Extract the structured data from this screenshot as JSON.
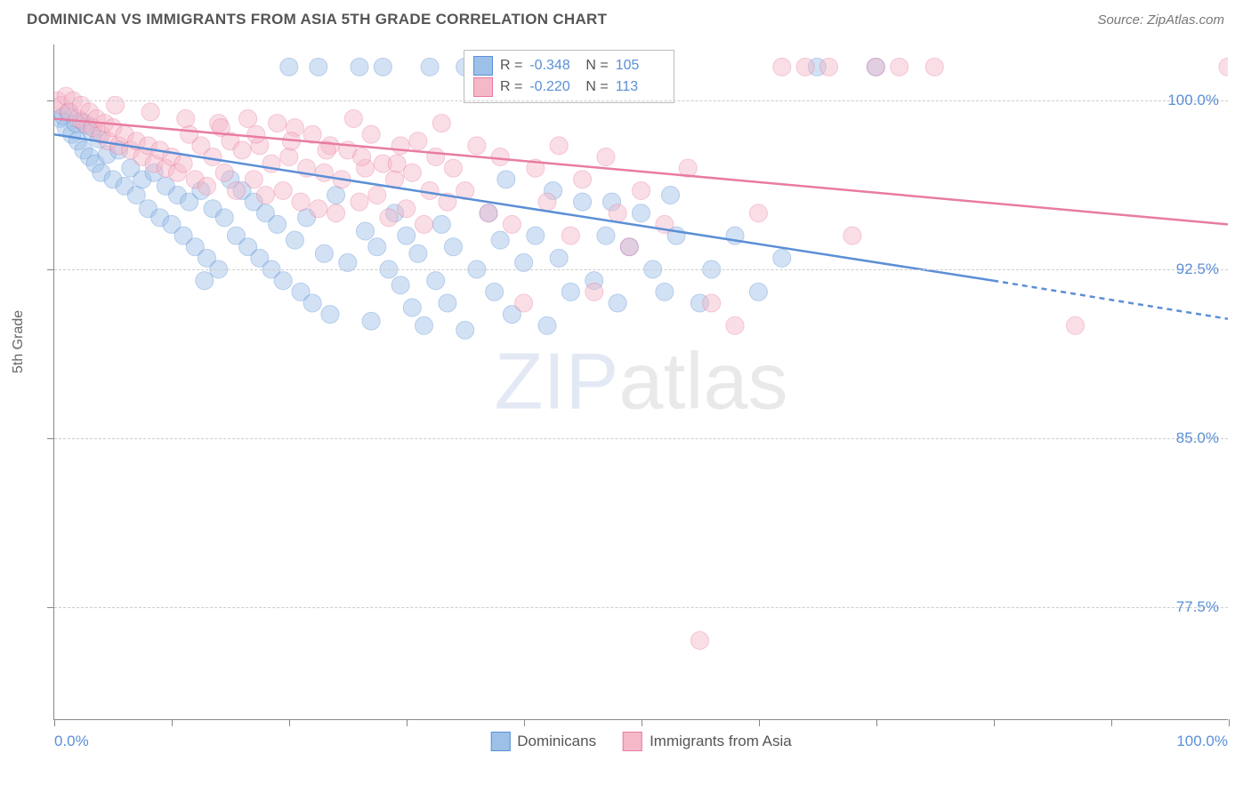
{
  "header": {
    "title": "DOMINICAN VS IMMIGRANTS FROM ASIA 5TH GRADE CORRELATION CHART",
    "source": "Source: ZipAtlas.com"
  },
  "chart": {
    "type": "scatter",
    "y_axis_label": "5th Grade",
    "watermark": "ZIPatlas",
    "background_color": "#ffffff",
    "grid_color": "#cccccc",
    "axis_color": "#888888",
    "xlim": [
      0,
      100
    ],
    "ylim": [
      72.5,
      102.5
    ],
    "y_ticks": [
      77.5,
      85.0,
      92.5,
      100.0
    ],
    "y_tick_labels": [
      "77.5%",
      "85.0%",
      "92.5%",
      "100.0%"
    ],
    "x_ticks": [
      0,
      10,
      20,
      30,
      40,
      50,
      60,
      70,
      80,
      90,
      100
    ],
    "x_label_start": "0.0%",
    "x_label_end": "100.0%",
    "marker_radius": 10,
    "marker_opacity": 0.45,
    "line_width": 2.5,
    "series": [
      {
        "name": "Dominicans",
        "color_fill": "#9cc0e8",
        "color_stroke": "#5b8fd6",
        "r_value": "-0.348",
        "n_value": "105",
        "trend": {
          "x1": 0,
          "y1": 98.5,
          "x2": 80,
          "y2": 92.0,
          "dash_x2": 100,
          "dash_y2": 90.3
        },
        "points": [
          [
            0.5,
            99.2
          ],
          [
            0.8,
            99.3
          ],
          [
            1.0,
            98.8
          ],
          [
            1.2,
            99.5
          ],
          [
            1.5,
            98.5
          ],
          [
            1.8,
            99.0
          ],
          [
            2.0,
            98.2
          ],
          [
            2.3,
            99.1
          ],
          [
            2.5,
            97.8
          ],
          [
            2.8,
            98.9
          ],
          [
            3.0,
            97.5
          ],
          [
            3.2,
            98.6
          ],
          [
            3.5,
            97.2
          ],
          [
            3.8,
            98.3
          ],
          [
            4.0,
            96.8
          ],
          [
            4.5,
            97.6
          ],
          [
            5.0,
            96.5
          ],
          [
            5.5,
            97.8
          ],
          [
            6.0,
            96.2
          ],
          [
            6.5,
            97.0
          ],
          [
            7.0,
            95.8
          ],
          [
            7.5,
            96.5
          ],
          [
            8.0,
            95.2
          ],
          [
            8.5,
            96.8
          ],
          [
            9.0,
            94.8
          ],
          [
            9.5,
            96.2
          ],
          [
            10.0,
            94.5
          ],
          [
            10.5,
            95.8
          ],
          [
            11.0,
            94.0
          ],
          [
            11.5,
            95.5
          ],
          [
            12.0,
            93.5
          ],
          [
            12.5,
            96.0
          ],
          [
            13.0,
            93.0
          ],
          [
            13.5,
            95.2
          ],
          [
            14.0,
            92.5
          ],
          [
            14.5,
            94.8
          ],
          [
            15.0,
            96.5
          ],
          [
            15.5,
            94.0
          ],
          [
            16.0,
            96.0
          ],
          [
            16.5,
            93.5
          ],
          [
            17.0,
            95.5
          ],
          [
            17.5,
            93.0
          ],
          [
            18.0,
            95.0
          ],
          [
            18.5,
            92.5
          ],
          [
            19.0,
            94.5
          ],
          [
            19.5,
            92.0
          ],
          [
            20.0,
            101.5
          ],
          [
            20.5,
            93.8
          ],
          [
            21.0,
            91.5
          ],
          [
            21.5,
            94.8
          ],
          [
            22.0,
            91.0
          ],
          [
            22.5,
            101.5
          ],
          [
            23.0,
            93.2
          ],
          [
            23.5,
            90.5
          ],
          [
            24.0,
            95.8
          ],
          [
            25.0,
            92.8
          ],
          [
            26.0,
            101.5
          ],
          [
            26.5,
            94.2
          ],
          [
            27.0,
            90.2
          ],
          [
            27.5,
            93.5
          ],
          [
            28.0,
            101.5
          ],
          [
            28.5,
            92.5
          ],
          [
            29.0,
            95.0
          ],
          [
            29.5,
            91.8
          ],
          [
            30.0,
            94.0
          ],
          [
            30.5,
            90.8
          ],
          [
            31.0,
            93.2
          ],
          [
            31.5,
            90.0
          ],
          [
            32.0,
            101.5
          ],
          [
            32.5,
            92.0
          ],
          [
            33.0,
            94.5
          ],
          [
            33.5,
            91.0
          ],
          [
            34.0,
            93.5
          ],
          [
            35.0,
            89.8
          ],
          [
            36.0,
            92.5
          ],
          [
            37.0,
            95.0
          ],
          [
            37.5,
            91.5
          ],
          [
            38.0,
            93.8
          ],
          [
            39.0,
            90.5
          ],
          [
            40.0,
            92.8
          ],
          [
            41.0,
            94.0
          ],
          [
            42.0,
            90.0
          ],
          [
            43.0,
            93.0
          ],
          [
            44.0,
            91.5
          ],
          [
            45.0,
            95.5
          ],
          [
            46.0,
            92.0
          ],
          [
            47.0,
            94.0
          ],
          [
            48.0,
            91.0
          ],
          [
            49.0,
            93.5
          ],
          [
            50.0,
            95.0
          ],
          [
            51.0,
            92.5
          ],
          [
            52.0,
            91.5
          ],
          [
            53.0,
            94.0
          ],
          [
            55.0,
            91.0
          ],
          [
            56.0,
            92.5
          ],
          [
            58.0,
            94.0
          ],
          [
            60.0,
            91.5
          ],
          [
            62.0,
            93.0
          ],
          [
            65.0,
            101.5
          ],
          [
            70.0,
            101.5
          ],
          [
            35.0,
            101.5
          ],
          [
            38.5,
            96.5
          ],
          [
            42.5,
            96.0
          ],
          [
            47.5,
            95.5
          ],
          [
            52.5,
            95.8
          ],
          [
            12.8,
            92.0
          ]
        ]
      },
      {
        "name": "Immigrants from Asia",
        "color_fill": "#f5b8c9",
        "color_stroke": "#e87ca0",
        "r_value": "-0.220",
        "n_value": "113",
        "trend": {
          "x1": 0,
          "y1": 99.2,
          "x2": 100,
          "y2": 94.5,
          "dash_x2": 100,
          "dash_y2": 94.5
        },
        "points": [
          [
            0.3,
            100.0
          ],
          [
            0.6,
            99.8
          ],
          [
            1.0,
            100.2
          ],
          [
            1.3,
            99.5
          ],
          [
            1.6,
            100.0
          ],
          [
            2.0,
            99.2
          ],
          [
            2.3,
            99.8
          ],
          [
            2.6,
            99.0
          ],
          [
            3.0,
            99.5
          ],
          [
            3.3,
            98.8
          ],
          [
            3.6,
            99.2
          ],
          [
            4.0,
            98.5
          ],
          [
            4.3,
            99.0
          ],
          [
            4.6,
            98.2
          ],
          [
            5.0,
            98.8
          ],
          [
            5.5,
            98.0
          ],
          [
            6.0,
            98.5
          ],
          [
            6.5,
            97.8
          ],
          [
            7.0,
            98.2
          ],
          [
            7.5,
            97.5
          ],
          [
            8.0,
            98.0
          ],
          [
            8.5,
            97.2
          ],
          [
            9.0,
            97.8
          ],
          [
            9.5,
            97.0
          ],
          [
            10.0,
            97.5
          ],
          [
            10.5,
            96.8
          ],
          [
            11.0,
            97.2
          ],
          [
            11.5,
            98.5
          ],
          [
            12.0,
            96.5
          ],
          [
            12.5,
            98.0
          ],
          [
            13.0,
            96.2
          ],
          [
            13.5,
            97.5
          ],
          [
            14.0,
            99.0
          ],
          [
            14.5,
            96.8
          ],
          [
            15.0,
            98.2
          ],
          [
            15.5,
            96.0
          ],
          [
            16.0,
            97.8
          ],
          [
            16.5,
            99.2
          ],
          [
            17.0,
            96.5
          ],
          [
            17.5,
            98.0
          ],
          [
            18.0,
            95.8
          ],
          [
            18.5,
            97.2
          ],
          [
            19.0,
            99.0
          ],
          [
            19.5,
            96.0
          ],
          [
            20.0,
            97.5
          ],
          [
            20.5,
            98.8
          ],
          [
            21.0,
            95.5
          ],
          [
            21.5,
            97.0
          ],
          [
            22.0,
            98.5
          ],
          [
            22.5,
            95.2
          ],
          [
            23.0,
            96.8
          ],
          [
            23.5,
            98.0
          ],
          [
            24.0,
            95.0
          ],
          [
            24.5,
            96.5
          ],
          [
            25.0,
            97.8
          ],
          [
            25.5,
            99.2
          ],
          [
            26.0,
            95.5
          ],
          [
            26.5,
            97.0
          ],
          [
            27.0,
            98.5
          ],
          [
            27.5,
            95.8
          ],
          [
            28.0,
            97.2
          ],
          [
            28.5,
            94.8
          ],
          [
            29.0,
            96.5
          ],
          [
            29.5,
            98.0
          ],
          [
            30.0,
            95.2
          ],
          [
            30.5,
            96.8
          ],
          [
            31.0,
            98.2
          ],
          [
            31.5,
            94.5
          ],
          [
            32.0,
            96.0
          ],
          [
            32.5,
            97.5
          ],
          [
            33.0,
            99.0
          ],
          [
            33.5,
            95.5
          ],
          [
            34.0,
            97.0
          ],
          [
            35.0,
            96.0
          ],
          [
            36.0,
            98.0
          ],
          [
            37.0,
            95.0
          ],
          [
            38.0,
            97.5
          ],
          [
            39.0,
            94.5
          ],
          [
            40.0,
            91.0
          ],
          [
            41.0,
            97.0
          ],
          [
            42.0,
            95.5
          ],
          [
            43.0,
            98.0
          ],
          [
            44.0,
            94.0
          ],
          [
            45.0,
            96.5
          ],
          [
            46.0,
            91.5
          ],
          [
            47.0,
            97.5
          ],
          [
            48.0,
            95.0
          ],
          [
            49.0,
            93.5
          ],
          [
            50.0,
            96.0
          ],
          [
            52.0,
            94.5
          ],
          [
            54.0,
            97.0
          ],
          [
            56.0,
            91.0
          ],
          [
            58.0,
            90.0
          ],
          [
            60.0,
            95.0
          ],
          [
            62.0,
            101.5
          ],
          [
            64.0,
            101.5
          ],
          [
            66.0,
            101.5
          ],
          [
            68.0,
            94.0
          ],
          [
            70.0,
            101.5
          ],
          [
            72.0,
            101.5
          ],
          [
            75.0,
            101.5
          ],
          [
            55.0,
            76.0
          ],
          [
            87.0,
            90.0
          ],
          [
            100.0,
            101.5
          ],
          [
            5.2,
            99.8
          ],
          [
            8.2,
            99.5
          ],
          [
            11.2,
            99.2
          ],
          [
            14.2,
            98.8
          ],
          [
            17.2,
            98.5
          ],
          [
            20.2,
            98.2
          ],
          [
            23.2,
            97.8
          ],
          [
            26.2,
            97.5
          ],
          [
            29.2,
            97.2
          ]
        ]
      }
    ],
    "legend_inset": {
      "r_label": "R =",
      "n_label": "N ="
    },
    "legend_bottom": {
      "series1_label": "Dominicans",
      "series2_label": "Immigrants from Asia"
    }
  }
}
